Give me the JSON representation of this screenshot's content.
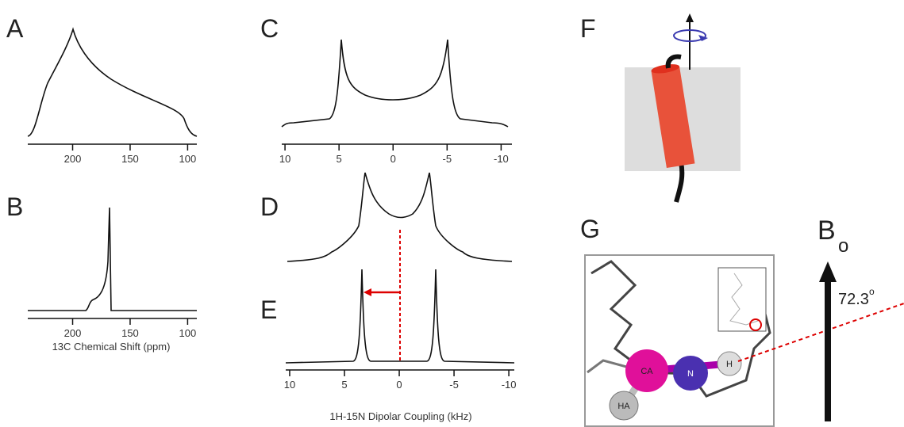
{
  "panels": [
    {
      "label": "A",
      "xlim": [
        239,
        92
      ],
      "xticks": [
        200,
        150,
        100
      ]
    },
    {
      "label": "B",
      "xlim": [
        239,
        92
      ],
      "xticks": [
        200,
        150,
        100
      ],
      "xlabel": "13C Chemical Shift (ppm)"
    },
    {
      "label": "C",
      "xlim": [
        10.3,
        -11
      ],
      "xticks": [
        10,
        5,
        0,
        -5,
        -10
      ]
    },
    {
      "label": "D"
    },
    {
      "label": "E",
      "xlim": [
        10.36,
        -10.5
      ],
      "xticks": [
        10,
        5,
        0,
        -5,
        -10
      ],
      "xlabel": "1H-15N Dipolar Coupling (kHz)"
    },
    {
      "label": "F"
    },
    {
      "label": "G",
      "atoms": [
        "CA",
        "N",
        "H",
        "HA"
      ]
    }
  ],
  "field": {
    "symbol": "B",
    "subscript": "o"
  },
  "angle": {
    "value": 72.3,
    "superscript": "o"
  }
}
